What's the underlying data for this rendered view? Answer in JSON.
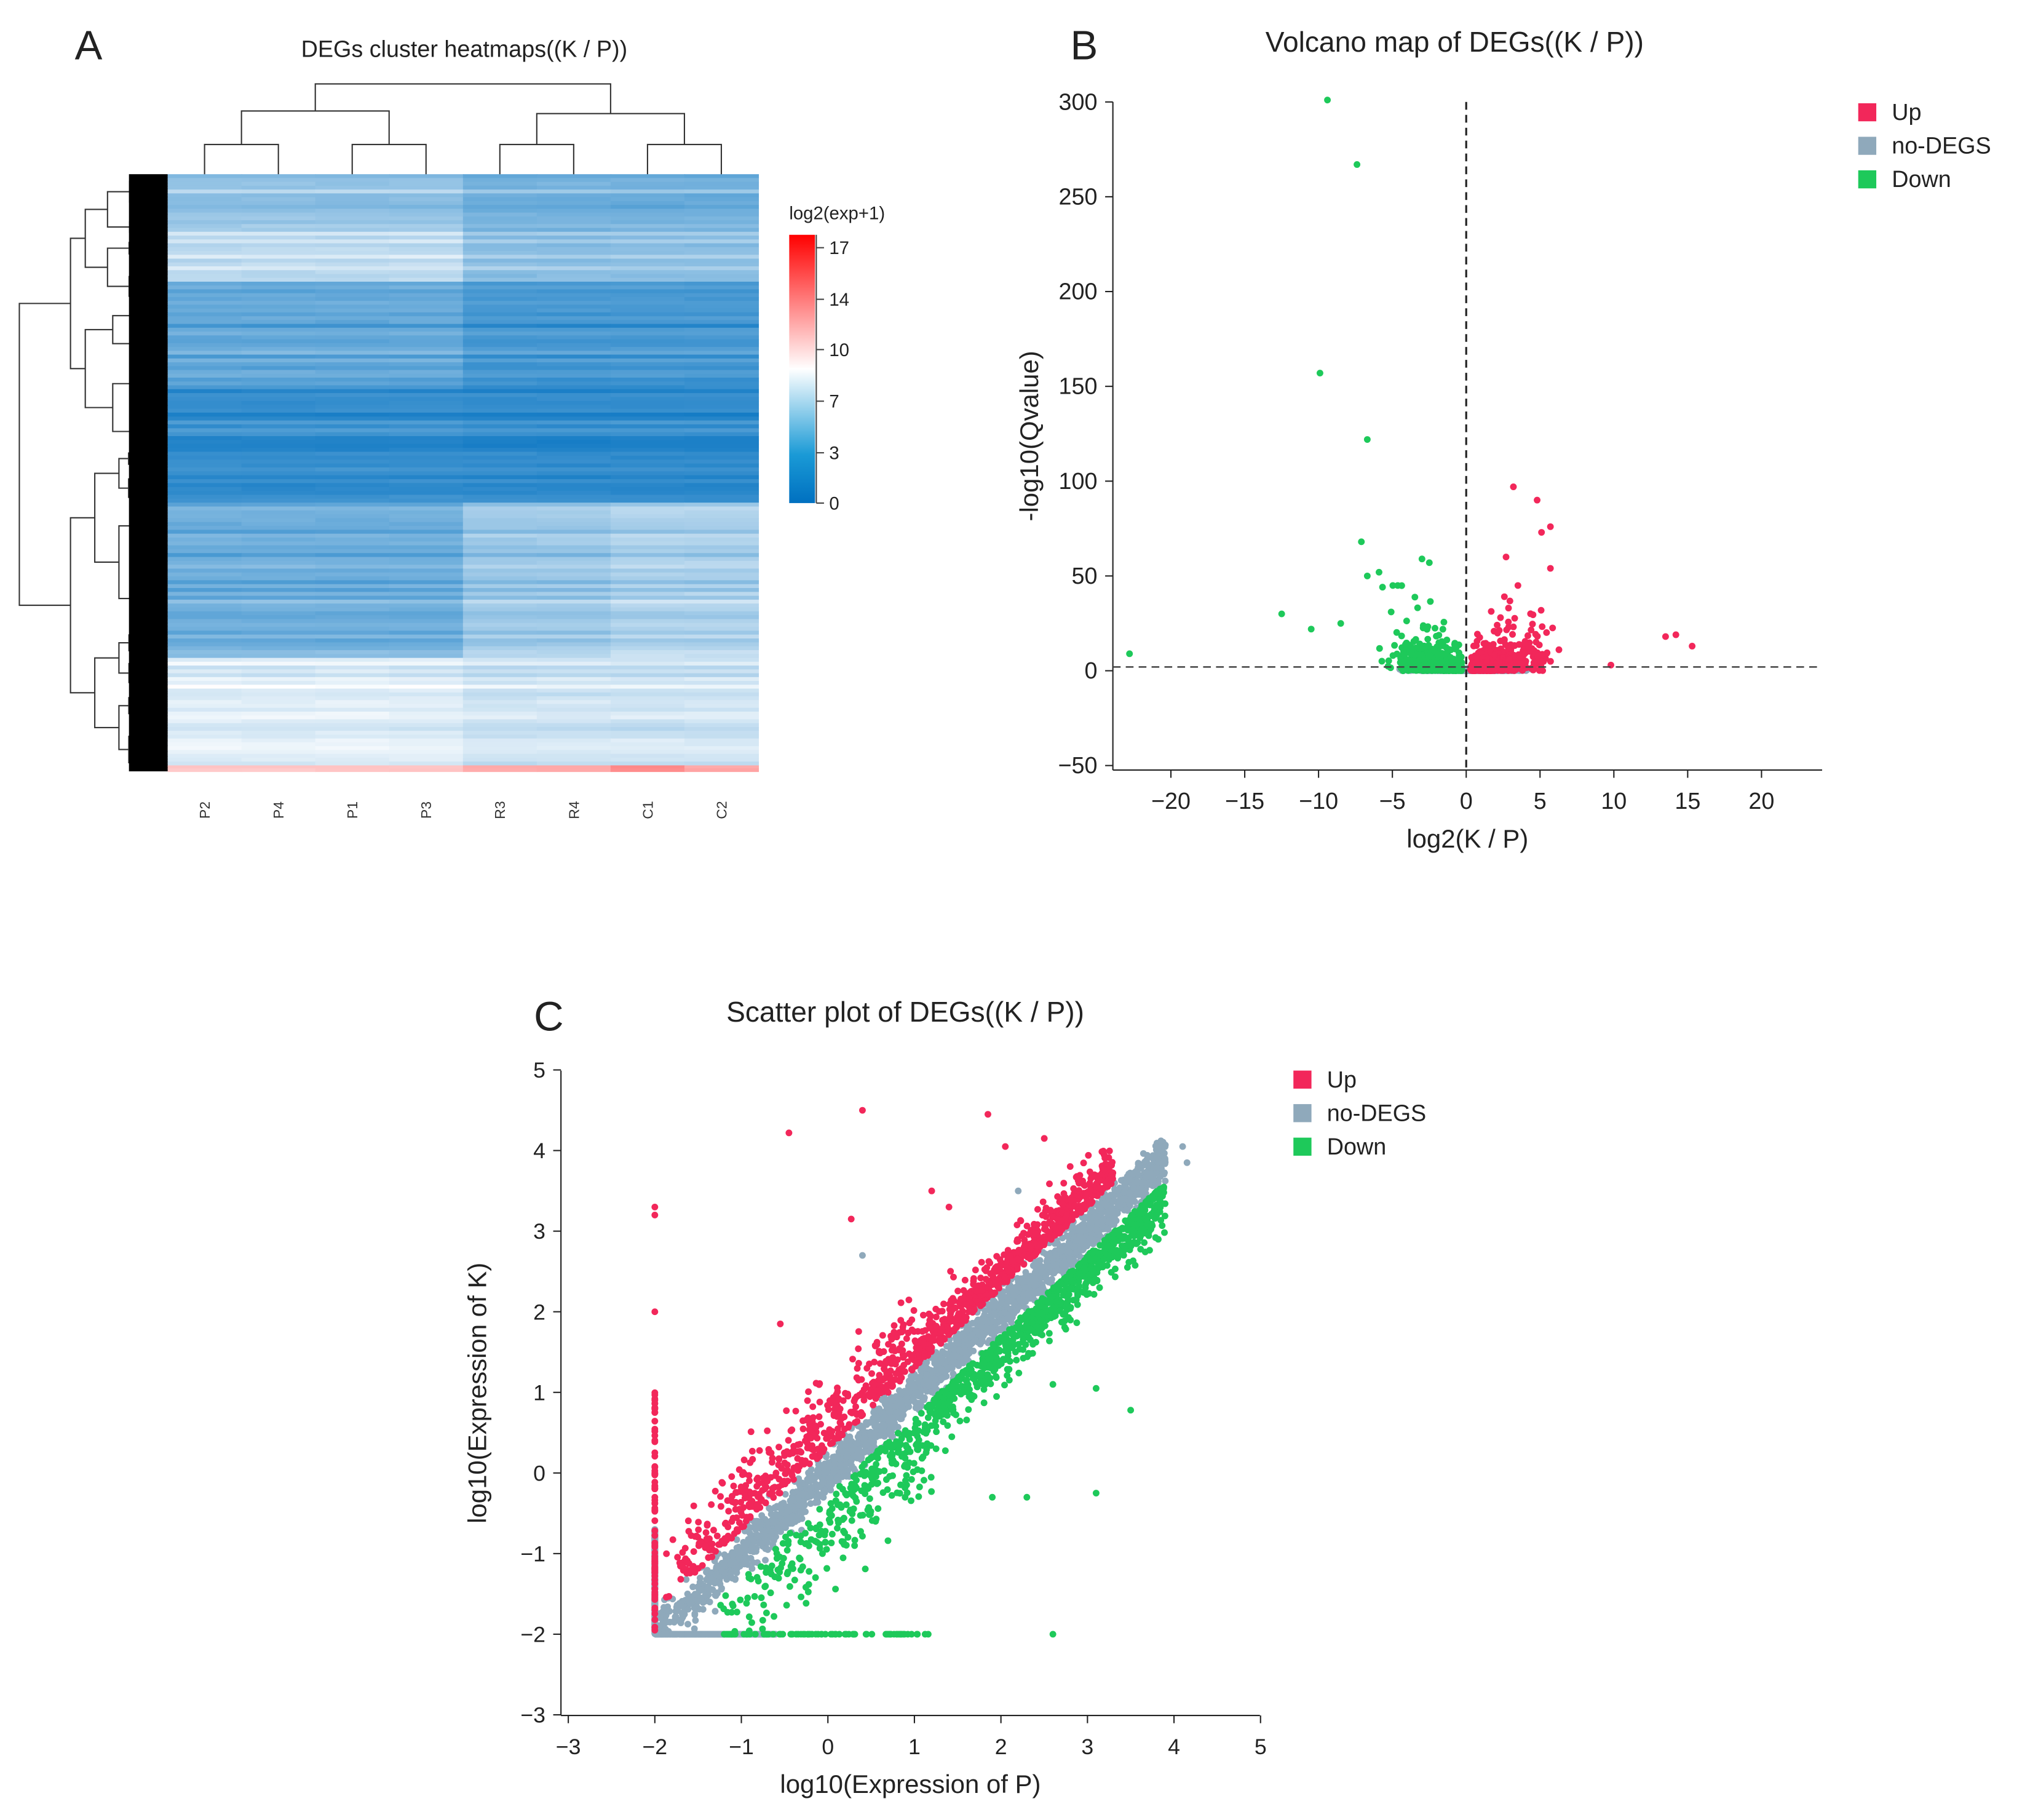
{
  "colors": {
    "up": "#f2275a",
    "nodeg": "#8fa9bb",
    "down": "#1ec95a"
  },
  "chart_data": [
    {
      "type": "heatmap",
      "panel_label": "A",
      "title": "DEGs cluster heatmaps((K / P))",
      "columns": [
        "P2",
        "P4",
        "P1",
        "P3",
        "R3",
        "R4",
        "C1",
        "C2"
      ],
      "colorbar": {
        "title": "log2(exp+1)",
        "ticks": [
          17,
          14,
          10,
          7,
          3,
          0
        ],
        "range": [
          0,
          18
        ],
        "colors": [
          "#0070c0",
          "#ffffff",
          "#ff0000"
        ]
      },
      "row_bands": [
        {
          "share": 0.09,
          "values": [
            5.5,
            5.5,
            5.5,
            5.5,
            4.5,
            4.5,
            4.5,
            4.5
          ]
        },
        {
          "share": 0.09,
          "values": [
            7,
            7,
            7,
            7,
            5.5,
            5.5,
            5.5,
            5.5
          ]
        },
        {
          "share": 0.18,
          "values": [
            4,
            4,
            4,
            4,
            3,
            3,
            3,
            3
          ]
        },
        {
          "share": 0.19,
          "values": [
            2.5,
            2.5,
            2.5,
            2.5,
            2.3,
            2.3,
            2.3,
            2.3
          ]
        },
        {
          "share": 0.26,
          "values": [
            4.5,
            4.5,
            4.5,
            4.5,
            6,
            6,
            6.5,
            6.5
          ]
        },
        {
          "share": 0.18,
          "values": [
            8,
            8,
            8,
            8,
            7.5,
            7.5,
            7.5,
            7.5
          ]
        },
        {
          "share": 0.01,
          "values": [
            11,
            11,
            11,
            11,
            12,
            12,
            13,
            12
          ]
        }
      ]
    },
    {
      "type": "scatter",
      "panel_label": "B",
      "title": "Volcano map of DEGs((K / P))",
      "xlabel": "log2(K / P)",
      "ylabel": "-log10(Qvalue)",
      "xlim": [
        -24,
        24
      ],
      "ylim": [
        -55,
        305
      ],
      "xticks": [
        -20,
        -15,
        -10,
        -5,
        0,
        5,
        10,
        15,
        20
      ],
      "yticks": [
        300,
        250,
        200,
        150,
        100,
        50,
        0,
        -50
      ],
      "threshold_lines": {
        "x": 0,
        "y": 2
      },
      "legend": [
        "Up",
        "no-DEGS",
        "Down"
      ],
      "legend_position": "top-right",
      "notable_points": {
        "Down": [
          [
            -9.4,
            301
          ],
          [
            -7.4,
            267
          ],
          [
            -9.9,
            157
          ],
          [
            -6.7,
            122
          ],
          [
            -7.1,
            68
          ],
          [
            -22.8,
            9
          ],
          [
            -12.5,
            30
          ],
          [
            -3.0,
            59
          ],
          [
            -2.5,
            57
          ],
          [
            -6.7,
            50
          ],
          [
            -5.9,
            52
          ],
          [
            -10.5,
            22
          ],
          [
            -8.5,
            25
          ]
        ],
        "Up": [
          [
            3.2,
            97
          ],
          [
            4.8,
            90
          ],
          [
            5.7,
            76
          ],
          [
            5.1,
            73
          ],
          [
            2.7,
            60
          ],
          [
            13.5,
            18
          ],
          [
            14.2,
            19
          ],
          [
            15.3,
            13
          ],
          [
            5.7,
            54
          ],
          [
            3.5,
            45
          ],
          [
            9.8,
            3
          ]
        ]
      }
    },
    {
      "type": "scatter",
      "panel_label": "C",
      "title": "Scatter plot of DEGs((K / P))",
      "xlabel": "log10(Expression of P)",
      "ylabel": "log10(Expression of K)",
      "xlim": [
        -3,
        5
      ],
      "ylim": [
        -3,
        5
      ],
      "xticks": [
        -3,
        -2,
        -1,
        0,
        1,
        2,
        3,
        4,
        5
      ],
      "yticks": [
        5,
        4,
        3,
        2,
        1,
        0,
        -1,
        -2,
        -3
      ],
      "legend": [
        "Up",
        "no-DEGS",
        "Down"
      ],
      "legend_position": "top-right",
      "notable_points": {
        "Up": [
          [
            0.4,
            4.5
          ],
          [
            1.85,
            4.45
          ],
          [
            -0.45,
            4.22
          ],
          [
            2.05,
            4.05
          ],
          [
            2.5,
            4.15
          ],
          [
            -2,
            3.3
          ],
          [
            -2,
            3.2
          ],
          [
            0.27,
            3.15
          ],
          [
            -2,
            2
          ],
          [
            1.2,
            3.5
          ],
          [
            1.4,
            3.3
          ],
          [
            -0.55,
            1.85
          ]
        ],
        "Down": [
          [
            2.6,
            -2
          ],
          [
            3.1,
            1.05
          ],
          [
            3.5,
            0.78
          ],
          [
            2.6,
            1.1
          ],
          [
            3.1,
            -0.25
          ],
          [
            2.3,
            -0.3
          ],
          [
            3.8,
            3.2
          ],
          [
            1.9,
            -0.3
          ]
        ],
        "no-DEGS": [
          [
            3.85,
            4.12
          ],
          [
            4.1,
            4.05
          ],
          [
            4.15,
            3.85
          ],
          [
            2.2,
            3.5
          ],
          [
            0.4,
            2.7
          ]
        ]
      }
    }
  ]
}
